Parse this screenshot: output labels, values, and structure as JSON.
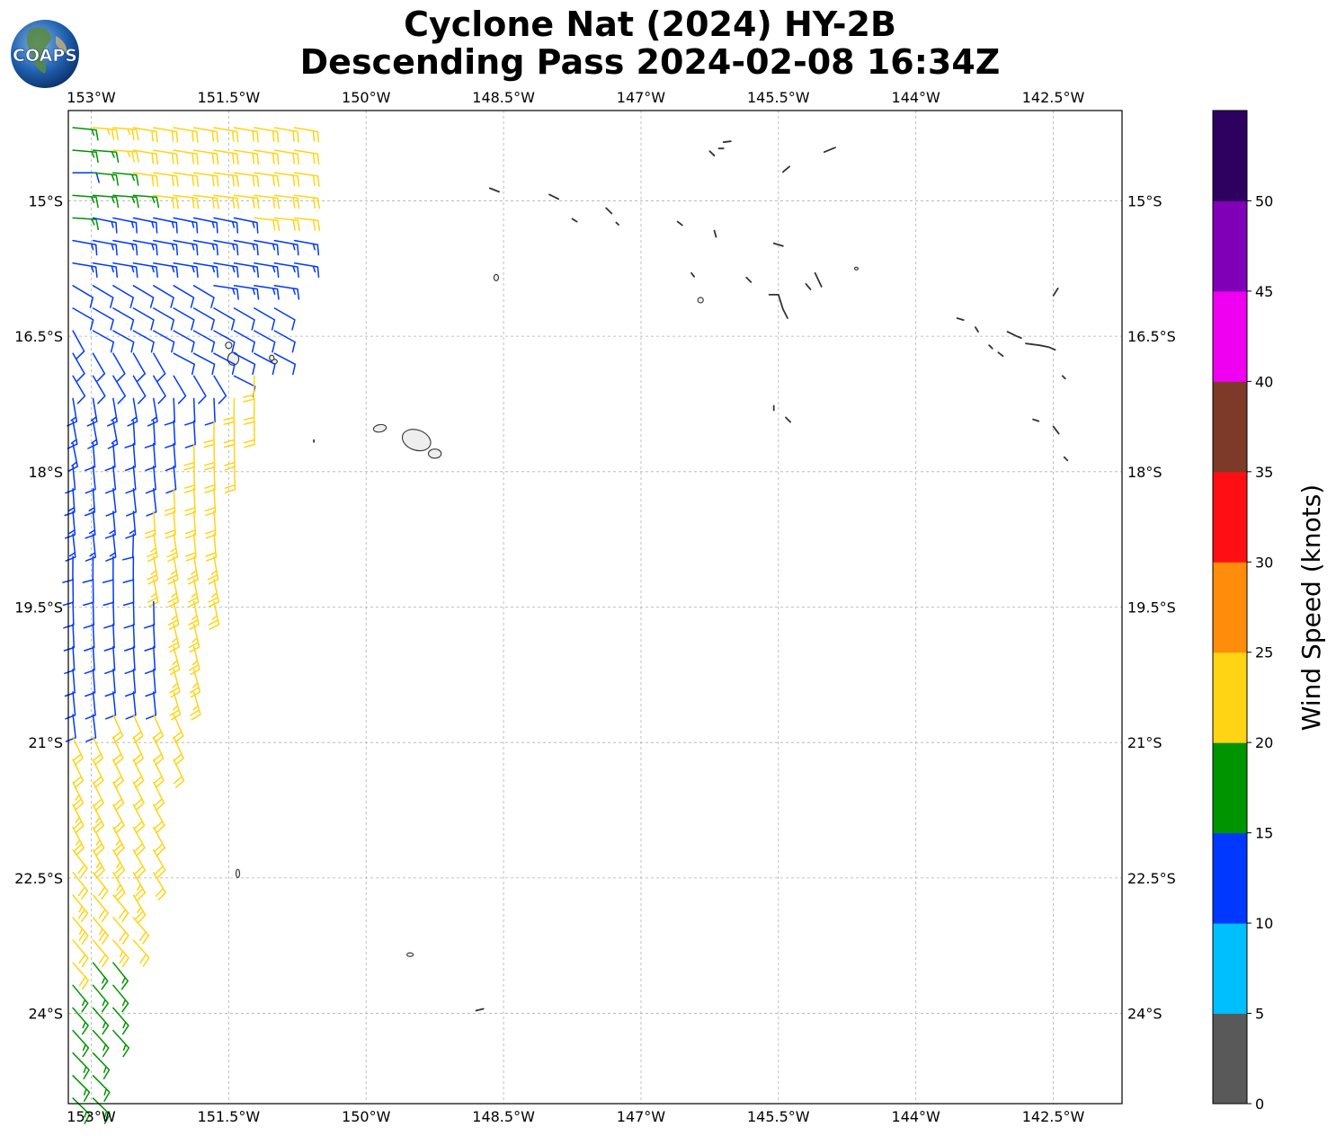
{
  "header": {
    "title_line1": "Cyclone Nat (2024) HY-2B",
    "title_line2": "Descending Pass 2024-02-08 16:34Z",
    "logo_text": "COAPS"
  },
  "map": {
    "lon_range": [
      -153.25,
      -141.75
    ],
    "lat_range": [
      -25,
      -14
    ],
    "lon_ticks": [
      {
        "value": -153.0,
        "label": "153°W"
      },
      {
        "value": -151.5,
        "label": "151.5°W"
      },
      {
        "value": -150.0,
        "label": "150°W"
      },
      {
        "value": -148.5,
        "label": "148.5°W"
      },
      {
        "value": -147.0,
        "label": "147°W"
      },
      {
        "value": -145.5,
        "label": "145.5°W"
      },
      {
        "value": -144.0,
        "label": "144°W"
      },
      {
        "value": -142.5,
        "label": "142.5°W"
      }
    ],
    "lat_ticks": [
      {
        "value": -15.0,
        "label": "15°S"
      },
      {
        "value": -16.5,
        "label": "16.5°S"
      },
      {
        "value": -18.0,
        "label": "18°S"
      },
      {
        "value": -19.5,
        "label": "19.5°S"
      },
      {
        "value": -21.0,
        "label": "21°S"
      },
      {
        "value": -22.5,
        "label": "22.5°S"
      },
      {
        "value": -24.0,
        "label": "24°S"
      }
    ],
    "gridlines": true,
    "coastline_color": "#333333",
    "islands": [
      {
        "lon": -149.45,
        "lat": -17.65,
        "w": 0.32,
        "h": 0.22,
        "rot": 20
      },
      {
        "lon": -149.25,
        "lat": -17.8,
        "w": 0.14,
        "h": 0.1,
        "rot": 0
      },
      {
        "lon": -149.85,
        "lat": -17.52,
        "w": 0.14,
        "h": 0.08,
        "rot": -10
      },
      {
        "lon": -151.45,
        "lat": -16.75,
        "w": 0.12,
        "h": 0.14,
        "rot": 0
      },
      {
        "lon": -151.5,
        "lat": -16.6,
        "w": 0.07,
        "h": 0.07,
        "rot": 0
      },
      {
        "lon": -151.0,
        "lat": -16.78,
        "w": 0.06,
        "h": 0.05,
        "rot": 0
      },
      {
        "lon": -151.03,
        "lat": -16.74,
        "w": 0.05,
        "h": 0.06,
        "rot": 0
      },
      {
        "lon": -148.58,
        "lat": -15.85,
        "w": 0.05,
        "h": 0.07,
        "rot": 0
      },
      {
        "lon": -146.35,
        "lat": -16.1,
        "w": 0.06,
        "h": 0.06,
        "rot": 0
      },
      {
        "lon": -144.65,
        "lat": -15.75,
        "w": 0.03,
        "h": 0.03,
        "rot": 0
      },
      {
        "lon": -151.4,
        "lat": -22.45,
        "w": 0.04,
        "h": 0.09,
        "rot": 0
      },
      {
        "lon": -149.52,
        "lat": -23.35,
        "w": 0.07,
        "h": 0.04,
        "rot": 0
      }
    ],
    "atolls": [
      [
        [
          -146.25,
          -14.45
        ],
        [
          -146.2,
          -14.5
        ]
      ],
      [
        [
          -146.1,
          -14.35
        ],
        [
          -146.02,
          -14.34
        ]
      ],
      [
        [
          -146.15,
          -14.42
        ],
        [
          -146.1,
          -14.42
        ]
      ],
      [
        [
          -145.45,
          -14.68
        ],
        [
          -145.38,
          -14.62
        ]
      ],
      [
        [
          -145.0,
          -14.46
        ],
        [
          -144.88,
          -14.41
        ]
      ],
      [
        [
          -148.65,
          -14.86
        ],
        [
          -148.55,
          -14.9
        ]
      ],
      [
        [
          -148.0,
          -14.93
        ],
        [
          -147.9,
          -14.98
        ]
      ],
      [
        [
          -147.38,
          -15.08
        ],
        [
          -147.32,
          -15.14
        ]
      ],
      [
        [
          -147.75,
          -15.2
        ],
        [
          -147.7,
          -15.23
        ]
      ],
      [
        [
          -147.27,
          -15.24
        ],
        [
          -147.26,
          -15.25
        ]
      ],
      [
        [
          -146.6,
          -15.23
        ],
        [
          -146.55,
          -15.27
        ]
      ],
      [
        [
          -146.2,
          -15.33
        ],
        [
          -146.18,
          -15.4
        ]
      ],
      [
        [
          -145.55,
          -15.47
        ],
        [
          -145.45,
          -15.5
        ]
      ],
      [
        [
          -146.45,
          -15.8
        ],
        [
          -146.42,
          -15.84
        ]
      ],
      [
        [
          -145.85,
          -15.85
        ],
        [
          -145.8,
          -15.9
        ]
      ],
      [
        [
          -145.1,
          -15.8
        ],
        [
          -145.03,
          -15.95
        ]
      ],
      [
        [
          -145.2,
          -15.92
        ],
        [
          -145.15,
          -15.98
        ]
      ],
      [
        [
          -145.6,
          -16.04
        ],
        [
          -145.5,
          -16.04
        ],
        [
          -145.45,
          -16.2
        ],
        [
          -145.4,
          -16.3
        ]
      ],
      [
        [
          -143.55,
          -16.3
        ],
        [
          -143.48,
          -16.32
        ]
      ],
      [
        [
          -143.35,
          -16.4
        ],
        [
          -143.32,
          -16.45
        ]
      ],
      [
        [
          -143.0,
          -16.45
        ],
        [
          -142.9,
          -16.5
        ],
        [
          -142.85,
          -16.52
        ]
      ],
      [
        [
          -142.8,
          -16.58
        ],
        [
          -142.65,
          -16.6
        ],
        [
          -142.55,
          -16.62
        ],
        [
          -142.48,
          -16.65
        ]
      ],
      [
        [
          -143.2,
          -16.6
        ],
        [
          -143.18,
          -16.62
        ]
      ],
      [
        [
          -143.1,
          -16.68
        ],
        [
          -143.05,
          -16.72
        ]
      ],
      [
        [
          -142.4,
          -16.94
        ],
        [
          -142.37,
          -16.97
        ]
      ],
      [
        [
          -145.55,
          -17.27
        ],
        [
          -145.55,
          -17.32
        ]
      ],
      [
        [
          -145.42,
          -17.4
        ],
        [
          -145.37,
          -17.45
        ]
      ],
      [
        [
          -142.72,
          -17.42
        ],
        [
          -142.66,
          -17.44
        ]
      ],
      [
        [
          -142.5,
          -17.5
        ],
        [
          -142.44,
          -17.58
        ]
      ],
      [
        [
          -142.38,
          -17.84
        ],
        [
          -142.36,
          -17.86
        ]
      ],
      [
        [
          -142.5,
          -16.05
        ],
        [
          -142.45,
          -15.97
        ]
      ],
      [
        [
          -150.57,
          -17.65
        ],
        [
          -150.57,
          -17.67
        ]
      ],
      [
        [
          -148.8,
          -23.97
        ],
        [
          -148.72,
          -23.95
        ]
      ]
    ]
  },
  "colorbar": {
    "label": "Wind Speed (knots)",
    "bins": [
      {
        "from": 0,
        "to": 5,
        "color": "#595959"
      },
      {
        "from": 5,
        "to": 10,
        "color": "#00bfff"
      },
      {
        "from": 10,
        "to": 15,
        "color": "#0038ff"
      },
      {
        "from": 15,
        "to": 20,
        "color": "#009400"
      },
      {
        "from": 20,
        "to": 25,
        "color": "#ffd414"
      },
      {
        "from": 25,
        "to": 30,
        "color": "#ff8c0a"
      },
      {
        "from": 30,
        "to": 35,
        "color": "#ff0f14"
      },
      {
        "from": 35,
        "to": 40,
        "color": "#7d3a28"
      },
      {
        "from": 40,
        "to": 45,
        "color": "#f000f0"
      },
      {
        "from": 45,
        "to": 50,
        "color": "#8000b8"
      },
      {
        "from": 50,
        "to": 55,
        "color": "#2e0060"
      }
    ],
    "tick_labels": [
      "0",
      "5",
      "10",
      "15",
      "20",
      "25",
      "30",
      "35",
      "40",
      "45",
      "50"
    ]
  },
  "barbs": {
    "swath_west_edge_lon": -153.25,
    "swath_east_edge": [
      [
        -14.0,
        -150.6
      ],
      [
        -15.5,
        -150.7
      ],
      [
        -16.6,
        -151.0
      ],
      [
        -17.4,
        -151.15
      ],
      [
        -18.0,
        -151.5
      ],
      [
        -19.0,
        -151.6
      ],
      [
        -20.2,
        -151.8
      ],
      [
        -21.5,
        -152.2
      ],
      [
        -22.5,
        -152.35
      ],
      [
        -23.8,
        -152.7
      ],
      [
        -25.0,
        -152.9
      ]
    ],
    "samples": [
      {
        "lat": -14.05,
        "lon": -152.85,
        "speed": 23,
        "dir": 95
      },
      {
        "lat": -14.05,
        "lon": -152.5,
        "speed": 22,
        "dir": 100
      },
      {
        "lat": -14.2,
        "lon": -153.2,
        "speed": 17,
        "dir": 95
      },
      {
        "lat": -14.45,
        "lon": -153.2,
        "speed": 12,
        "dir": 90
      },
      {
        "lat": -14.7,
        "lon": -153.15,
        "speed": 17,
        "dir": 95
      },
      {
        "lat": -15.4,
        "lon": -152.85,
        "speed": 13,
        "dir": 100
      },
      {
        "lat": -16.0,
        "lon": -152.9,
        "speed": 12,
        "dir": 120
      },
      {
        "lat": -16.6,
        "lon": -153.1,
        "speed": 12,
        "dir": 150
      },
      {
        "lat": -17.2,
        "lon": -153.1,
        "speed": 13,
        "dir": 170
      },
      {
        "lat": -17.7,
        "lon": -152.85,
        "speed": 12,
        "dir": 175
      },
      {
        "lat": -18.3,
        "lon": -153.1,
        "speed": 13,
        "dir": 175
      },
      {
        "lat": -18.9,
        "lon": -153.0,
        "speed": 12,
        "dir": 180
      },
      {
        "lat": -18.5,
        "lon": -151.65,
        "speed": 22,
        "dir": 175
      },
      {
        "lat": -18.75,
        "lon": -151.7,
        "speed": 23,
        "dir": 170
      },
      {
        "lat": -22.1,
        "lon": -152.3,
        "speed": 22,
        "dir": 150
      },
      {
        "lat": -22.3,
        "lon": -152.55,
        "speed": 23,
        "dir": 150
      },
      {
        "lat": -22.6,
        "lon": -152.8,
        "speed": 22,
        "dir": 140
      },
      {
        "lat": -22.8,
        "lon": -153.1,
        "speed": 23,
        "dir": 140
      },
      {
        "lat": -23.0,
        "lon": -153.2,
        "speed": 22,
        "dir": 140
      },
      {
        "lat": -23.6,
        "lon": -152.8,
        "speed": 17,
        "dir": 140
      },
      {
        "lat": -24.6,
        "lon": -152.9,
        "speed": 17,
        "dir": 135
      }
    ]
  }
}
